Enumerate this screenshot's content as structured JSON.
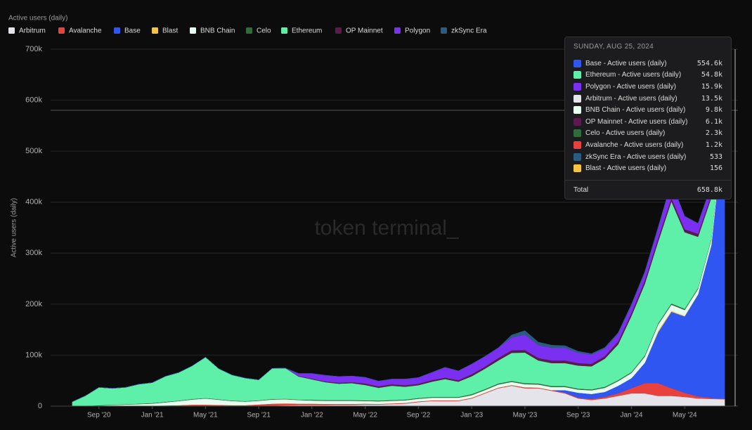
{
  "chart_data": {
    "type": "stacked-area",
    "title": "Active users (daily)",
    "y_label": "Active users (daily)",
    "watermark": "token terminal_",
    "grid": true,
    "x": [
      "2020-07",
      "2020-08",
      "2020-09",
      "2020-10",
      "2020-11",
      "2020-12",
      "2021-01",
      "2021-02",
      "2021-03",
      "2021-04",
      "2021-05",
      "2021-06",
      "2021-07",
      "2021-08",
      "2021-09",
      "2021-10",
      "2021-11",
      "2021-12",
      "2022-01",
      "2022-02",
      "2022-03",
      "2022-04",
      "2022-05",
      "2022-06",
      "2022-07",
      "2022-08",
      "2022-09",
      "2022-10",
      "2022-11",
      "2022-12",
      "2023-01",
      "2023-02",
      "2023-03",
      "2023-04",
      "2023-05",
      "2023-06",
      "2023-07",
      "2023-08",
      "2023-09",
      "2023-10",
      "2023-11",
      "2023-12",
      "2024-01",
      "2024-02",
      "2024-03",
      "2024-04",
      "2024-05",
      "2024-06",
      "2024-07",
      "2024-08"
    ],
    "xlim": [
      "2020-06",
      "2024-09"
    ],
    "xticks": [
      {
        "value": "2020-09",
        "label": "Sep '20"
      },
      {
        "value": "2021-01",
        "label": "Jan '21"
      },
      {
        "value": "2021-05",
        "label": "May '21"
      },
      {
        "value": "2021-09",
        "label": "Sep '21"
      },
      {
        "value": "2022-01",
        "label": "Jan '22"
      },
      {
        "value": "2022-05",
        "label": "May '22"
      },
      {
        "value": "2022-09",
        "label": "Sep '22"
      },
      {
        "value": "2023-01",
        "label": "Jan '23"
      },
      {
        "value": "2023-05",
        "label": "May '23"
      },
      {
        "value": "2023-09",
        "label": "Sep '23"
      },
      {
        "value": "2024-01",
        "label": "Jan '24"
      },
      {
        "value": "2024-05",
        "label": "May '24"
      }
    ],
    "ylim": [
      0,
      700000
    ],
    "yticks": [
      0,
      {
        "value": 100000,
        "label": "100k"
      },
      {
        "value": 200000,
        "label": "200k"
      },
      {
        "value": 300000,
        "label": "300k"
      },
      {
        "value": 400000,
        "label": "400k"
      },
      {
        "value": 500000,
        "label": "500k"
      },
      {
        "value": 600000,
        "label": "600k"
      },
      {
        "value": 700000,
        "label": "700k"
      }
    ],
    "series": [
      {
        "name": "Arbitrum",
        "color": "#e4e4ea",
        "values": [
          0,
          0,
          0,
          0,
          0,
          0,
          0,
          0,
          0,
          0,
          0,
          0,
          0,
          0,
          500,
          1000,
          1500,
          2000,
          2000,
          2000,
          2500,
          2500,
          3000,
          3000,
          4000,
          5000,
          8000,
          10000,
          10000,
          10000,
          15000,
          25000,
          35000,
          40000,
          35000,
          35000,
          30000,
          25000,
          15000,
          12000,
          15000,
          20000,
          25000,
          25000,
          20000,
          20000,
          18000,
          15000,
          14000,
          13500
        ]
      },
      {
        "name": "Avalanche",
        "color": "#e8413e",
        "values": [
          0,
          0,
          0,
          500,
          1000,
          1000,
          1000,
          1500,
          2000,
          3000,
          3000,
          2500,
          2000,
          2000,
          3000,
          4000,
          4000,
          3000,
          3000,
          2500,
          2000,
          2000,
          2000,
          1500,
          1500,
          1500,
          1500,
          1500,
          1500,
          1500,
          1500,
          1500,
          1500,
          1500,
          2000,
          1500,
          1500,
          1500,
          1500,
          2000,
          3000,
          5000,
          10000,
          20000,
          25000,
          15000,
          8000,
          4000,
          2000,
          1200
        ]
      },
      {
        "name": "Base",
        "color": "#2f56f0",
        "values": [
          0,
          0,
          0,
          0,
          0,
          0,
          0,
          0,
          0,
          0,
          0,
          0,
          0,
          0,
          0,
          0,
          0,
          0,
          0,
          0,
          0,
          0,
          0,
          0,
          0,
          0,
          0,
          0,
          0,
          0,
          0,
          0,
          0,
          0,
          0,
          0,
          0,
          5000,
          10000,
          10000,
          10000,
          15000,
          20000,
          40000,
          100000,
          150000,
          150000,
          200000,
          300000,
          554600
        ]
      },
      {
        "name": "Blast",
        "color": "#f5c445",
        "values": [
          0,
          0,
          0,
          0,
          0,
          0,
          0,
          0,
          0,
          0,
          0,
          0,
          0,
          0,
          0,
          0,
          0,
          0,
          0,
          0,
          0,
          0,
          0,
          0,
          0,
          0,
          0,
          0,
          0,
          0,
          0,
          0,
          0,
          0,
          0,
          0,
          0,
          0,
          0,
          0,
          0,
          0,
          0,
          0,
          3000,
          2000,
          1500,
          800,
          400,
          156
        ]
      },
      {
        "name": "BNB Chain",
        "color": "#e6fff0",
        "values": [
          0,
          0,
          1000,
          1500,
          2000,
          3000,
          4000,
          6000,
          8000,
          10000,
          12000,
          10000,
          8000,
          7000,
          7000,
          8000,
          8000,
          7000,
          6000,
          6000,
          6000,
          6000,
          5000,
          5000,
          5000,
          5000,
          5000,
          5000,
          5000,
          5000,
          5000,
          5000,
          6000,
          6000,
          6000,
          6000,
          6000,
          6000,
          6000,
          7000,
          8000,
          9000,
          10000,
          12000,
          12000,
          12000,
          11000,
          10000,
          10000,
          9800
        ]
      },
      {
        "name": "Celo",
        "color": "#2f6b3b",
        "values": [
          500,
          500,
          800,
          800,
          800,
          1000,
          1000,
          1000,
          1000,
          1000,
          1000,
          1000,
          1000,
          1000,
          1000,
          1000,
          1000,
          1000,
          1500,
          1500,
          1500,
          1500,
          1500,
          1500,
          1500,
          1500,
          1500,
          1500,
          1500,
          1500,
          2000,
          2000,
          2000,
          2000,
          2000,
          2000,
          2000,
          2000,
          2000,
          2000,
          2000,
          2000,
          2000,
          2500,
          2500,
          2500,
          2500,
          2300,
          2300,
          2300
        ]
      },
      {
        "name": "Ethereum",
        "color": "#5ef0a9",
        "values": [
          8000,
          20000,
          35000,
          32000,
          33000,
          38000,
          40000,
          50000,
          55000,
          65000,
          80000,
          60000,
          50000,
          45000,
          40000,
          60000,
          60000,
          45000,
          40000,
          35000,
          32000,
          33000,
          30000,
          25000,
          28000,
          25000,
          25000,
          30000,
          35000,
          30000,
          35000,
          40000,
          45000,
          55000,
          60000,
          45000,
          45000,
          45000,
          45000,
          45000,
          55000,
          70000,
          110000,
          140000,
          160000,
          200000,
          150000,
          100000,
          80000,
          54800
        ]
      },
      {
        "name": "OP Mainnet",
        "color": "#5b1a4b",
        "values": [
          0,
          0,
          0,
          0,
          0,
          0,
          0,
          0,
          0,
          0,
          0,
          0,
          0,
          0,
          0,
          0,
          0,
          1000,
          1500,
          1500,
          2000,
          2000,
          3000,
          3000,
          3000,
          3000,
          3000,
          3000,
          3000,
          3000,
          4000,
          4000,
          5000,
          5000,
          5000,
          5000,
          5000,
          5000,
          5000,
          5000,
          5000,
          6000,
          6000,
          7000,
          7000,
          7000,
          6000,
          6000,
          6000,
          6100
        ]
      },
      {
        "name": "Polygon",
        "color": "#7b2ff0",
        "values": [
          0,
          0,
          0,
          0,
          0,
          0,
          0,
          0,
          0,
          0,
          0,
          0,
          0,
          0,
          0,
          0,
          0,
          5000,
          10000,
          12000,
          12000,
          12000,
          12000,
          10000,
          10000,
          12000,
          12000,
          15000,
          20000,
          18000,
          20000,
          20000,
          20000,
          25000,
          30000,
          25000,
          25000,
          25000,
          20000,
          18000,
          15000,
          15000,
          15000,
          15000,
          20000,
          30000,
          25000,
          20000,
          18000,
          15900
        ]
      },
      {
        "name": "zkSync Era",
        "color": "#2a5b80",
        "values": [
          0,
          0,
          0,
          0,
          0,
          0,
          0,
          0,
          0,
          0,
          0,
          0,
          0,
          0,
          0,
          0,
          0,
          0,
          0,
          0,
          0,
          0,
          0,
          0,
          0,
          0,
          0,
          0,
          0,
          0,
          0,
          0,
          0,
          5000,
          8000,
          6000,
          5000,
          4000,
          3000,
          2000,
          2000,
          2000,
          2000,
          2000,
          1500,
          1000,
          800,
          600,
          550,
          533
        ]
      }
    ]
  },
  "tooltip": {
    "date": "SUNDAY, AUG 25, 2024",
    "rows": [
      {
        "label": "Base - Active users (daily)",
        "value": "554.6k",
        "color": "#2f56f0"
      },
      {
        "label": "Ethereum - Active users (daily)",
        "value": "54.8k",
        "color": "#5ef0a9"
      },
      {
        "label": "Polygon - Active users (daily)",
        "value": "15.9k",
        "color": "#7b2ff0"
      },
      {
        "label": "Arbitrum - Active users (daily)",
        "value": "13.5k",
        "color": "#e4e4ea"
      },
      {
        "label": "BNB Chain - Active users (daily)",
        "value": "9.8k",
        "color": "#e6fff0"
      },
      {
        "label": "OP Mainnet - Active users (daily)",
        "value": "6.1k",
        "color": "#5b1a4b"
      },
      {
        "label": "Celo - Active users (daily)",
        "value": "2.3k",
        "color": "#2f6b3b"
      },
      {
        "label": "Avalanche - Active users (daily)",
        "value": "1.2k",
        "color": "#e8413e"
      },
      {
        "label": "zkSync Era - Active users (daily)",
        "value": "533",
        "color": "#2a5b80"
      },
      {
        "label": "Blast - Active users (daily)",
        "value": "156",
        "color": "#f5c445"
      }
    ],
    "total_label": "Total",
    "total_value": "658.8k"
  }
}
